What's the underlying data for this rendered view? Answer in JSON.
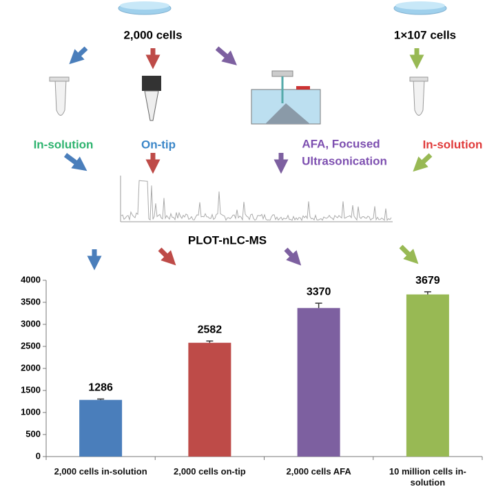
{
  "diagram": {
    "left_sample": "2,000 cells",
    "right_sample": "1×107 cells",
    "methods": [
      "In-solution",
      "On-tip"
    ],
    "afa_lines": [
      "AFA, Focused",
      "Ultrasonication"
    ],
    "right_method": "In-solution",
    "analysis": "PLOT-nLC-MS"
  },
  "chart_data": {
    "type": "bar",
    "categories": [
      "2,000 cells in-solution",
      "2,000 cells on-tip",
      "2,000 cells AFA",
      "10 million cells in-solution"
    ],
    "values": [
      1286,
      2582,
      3370,
      3679
    ],
    "errors": [
      20,
      40,
      110,
      60
    ],
    "colors": [
      "#4a7ebb",
      "#be4b48",
      "#7d60a0",
      "#98b954"
    ],
    "ylim": [
      0,
      4000
    ],
    "yticks": [
      0,
      500,
      1000,
      1500,
      2000,
      2500,
      3000,
      3500,
      4000
    ]
  }
}
